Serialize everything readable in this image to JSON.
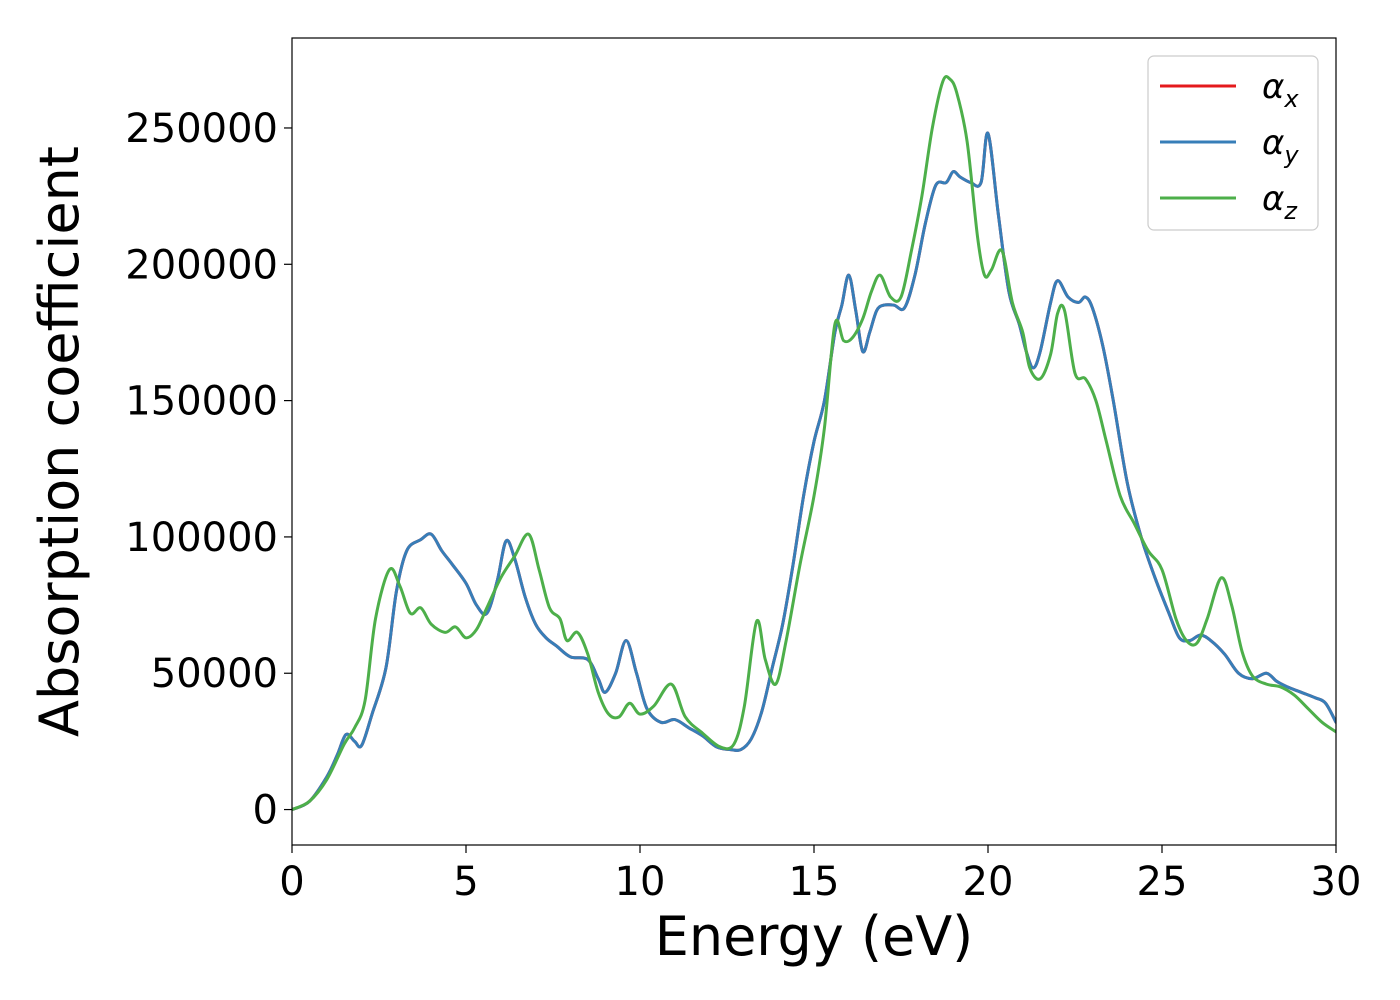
{
  "chart_data": {
    "type": "line",
    "title": "",
    "xlabel": "Energy (eV)",
    "ylabel": "Absorption coefficient",
    "xlim": [
      0,
      30
    ],
    "ylim": [
      -13000,
      283000
    ],
    "xticks": [
      0,
      5,
      10,
      15,
      20,
      25,
      30
    ],
    "yticks": [
      0,
      50000,
      100000,
      150000,
      200000,
      250000
    ],
    "grid": false,
    "legend": {
      "position": "top-right"
    },
    "series": [
      {
        "name": "α",
        "subscript": "x",
        "color": "#e41a1c",
        "x": [
          0,
          0.5,
          1,
          1.3,
          1.55,
          1.8,
          2.0,
          2.3,
          2.7,
          3.0,
          3.3,
          3.7,
          4.0,
          4.3,
          4.6,
          5.0,
          5.3,
          5.6,
          5.9,
          6.15,
          6.4,
          6.7,
          7.0,
          7.3,
          7.6,
          8.0,
          8.5,
          8.8,
          9.0,
          9.3,
          9.6,
          9.9,
          10.2,
          10.6,
          11.0,
          11.4,
          11.8,
          12.2,
          12.6,
          12.9,
          13.2,
          13.5,
          13.8,
          14.1,
          14.4,
          14.7,
          15.0,
          15.3,
          15.6,
          15.8,
          16.0,
          16.2,
          16.4,
          16.6,
          16.8,
          17.0,
          17.3,
          17.6,
          17.9,
          18.2,
          18.5,
          18.8,
          19.0,
          19.2,
          19.5,
          19.8,
          20.0,
          20.3,
          20.6,
          20.9,
          21.1,
          21.3,
          21.5,
          21.8,
          22.0,
          22.3,
          22.6,
          22.8,
          23.0,
          23.3,
          23.6,
          24.0,
          24.4,
          24.8,
          25.2,
          25.5,
          25.8,
          26.1,
          26.4,
          26.8,
          27.2,
          27.6,
          28.0,
          28.3,
          28.6,
          29.0,
          29.4,
          29.7,
          30.0
        ],
        "values": [
          0,
          3000,
          12000,
          20000,
          27500,
          25000,
          23500,
          35000,
          52000,
          80000,
          95000,
          99000,
          101000,
          95000,
          90000,
          83000,
          75000,
          72000,
          84000,
          98500,
          92000,
          78000,
          68000,
          63000,
          60000,
          56000,
          55000,
          48000,
          43000,
          50000,
          62000,
          50000,
          37000,
          32000,
          33000,
          30000,
          27000,
          23000,
          22000,
          22000,
          26000,
          36000,
          52000,
          68000,
          90000,
          115000,
          135000,
          150000,
          175000,
          185000,
          196000,
          183000,
          168000,
          175000,
          183000,
          185000,
          185000,
          184000,
          196000,
          215000,
          229000,
          230000,
          234000,
          232000,
          230000,
          230000,
          248000,
          218000,
          190000,
          178000,
          168000,
          162000,
          168000,
          186000,
          194000,
          188000,
          186000,
          188000,
          184000,
          170000,
          150000,
          120000,
          100000,
          85000,
          72000,
          63000,
          62000,
          64000,
          62000,
          57000,
          50000,
          48000,
          50000,
          47000,
          45000,
          43000,
          41000,
          39000,
          32000
        ]
      },
      {
        "name": "α",
        "subscript": "y",
        "color": "#377eb8",
        "x": [
          0,
          0.5,
          1,
          1.3,
          1.55,
          1.8,
          2.0,
          2.3,
          2.7,
          3.0,
          3.3,
          3.7,
          4.0,
          4.3,
          4.6,
          5.0,
          5.3,
          5.6,
          5.9,
          6.15,
          6.4,
          6.7,
          7.0,
          7.3,
          7.6,
          8.0,
          8.5,
          8.8,
          9.0,
          9.3,
          9.6,
          9.9,
          10.2,
          10.6,
          11.0,
          11.4,
          11.8,
          12.2,
          12.6,
          12.9,
          13.2,
          13.5,
          13.8,
          14.1,
          14.4,
          14.7,
          15.0,
          15.3,
          15.6,
          15.8,
          16.0,
          16.2,
          16.4,
          16.6,
          16.8,
          17.0,
          17.3,
          17.6,
          17.9,
          18.2,
          18.5,
          18.8,
          19.0,
          19.2,
          19.5,
          19.8,
          20.0,
          20.3,
          20.6,
          20.9,
          21.1,
          21.3,
          21.5,
          21.8,
          22.0,
          22.3,
          22.6,
          22.8,
          23.0,
          23.3,
          23.6,
          24.0,
          24.4,
          24.8,
          25.2,
          25.5,
          25.8,
          26.1,
          26.4,
          26.8,
          27.2,
          27.6,
          28.0,
          28.3,
          28.6,
          29.0,
          29.4,
          29.7,
          30.0
        ],
        "values": [
          0,
          3000,
          12000,
          20000,
          27500,
          25000,
          23500,
          35000,
          52000,
          80000,
          95000,
          99000,
          101000,
          95000,
          90000,
          83000,
          75000,
          72000,
          84000,
          98500,
          92000,
          78000,
          68000,
          63000,
          60000,
          56000,
          55000,
          48000,
          43000,
          50000,
          62000,
          50000,
          37000,
          32000,
          33000,
          30000,
          27000,
          23000,
          22000,
          22000,
          26000,
          36000,
          52000,
          68000,
          90000,
          115000,
          135000,
          150000,
          175000,
          185000,
          196000,
          183000,
          168000,
          175000,
          183000,
          185000,
          185000,
          184000,
          196000,
          215000,
          229000,
          230000,
          234000,
          232000,
          230000,
          230000,
          248000,
          218000,
          190000,
          178000,
          168000,
          162000,
          168000,
          186000,
          194000,
          188000,
          186000,
          188000,
          184000,
          170000,
          150000,
          120000,
          100000,
          85000,
          72000,
          63000,
          62000,
          64000,
          62000,
          57000,
          50000,
          48000,
          50000,
          47000,
          45000,
          43000,
          41000,
          39000,
          32000
        ]
      },
      {
        "name": "α",
        "subscript": "z",
        "color": "#4daf4a",
        "x": [
          0,
          0.5,
          1,
          1.5,
          1.8,
          2.1,
          2.4,
          2.8,
          3.1,
          3.4,
          3.7,
          4.0,
          4.4,
          4.7,
          5.0,
          5.3,
          5.6,
          6.0,
          6.4,
          6.8,
          7.1,
          7.4,
          7.7,
          7.9,
          8.2,
          8.5,
          8.8,
          9.1,
          9.4,
          9.7,
          10.0,
          10.4,
          10.9,
          11.3,
          11.8,
          12.3,
          12.7,
          13.0,
          13.35,
          13.6,
          13.9,
          14.2,
          14.6,
          15.0,
          15.3,
          15.6,
          15.85,
          16.1,
          16.4,
          16.65,
          16.9,
          17.2,
          17.5,
          17.8,
          18.1,
          18.4,
          18.7,
          18.9,
          19.1,
          19.4,
          19.7,
          19.9,
          20.1,
          20.4,
          20.7,
          21.0,
          21.2,
          21.5,
          21.8,
          22.0,
          22.2,
          22.5,
          22.8,
          23.1,
          23.4,
          23.8,
          24.2,
          24.6,
          25.0,
          25.4,
          25.7,
          26.0,
          26.3,
          26.7,
          27.0,
          27.3,
          27.6,
          28.0,
          28.4,
          28.8,
          29.2,
          29.6,
          30.0
        ],
        "values": [
          0,
          3000,
          11000,
          24000,
          30000,
          40000,
          70000,
          88000,
          82000,
          72000,
          74000,
          68000,
          65000,
          67000,
          63000,
          66000,
          74000,
          85000,
          93000,
          101000,
          88000,
          74000,
          70000,
          62000,
          65000,
          57000,
          43000,
          35000,
          34000,
          39000,
          35000,
          38000,
          46000,
          34000,
          28000,
          23000,
          24000,
          38000,
          69000,
          55000,
          46000,
          62000,
          90000,
          115000,
          140000,
          178000,
          172000,
          173000,
          180000,
          190000,
          196000,
          188000,
          188000,
          205000,
          225000,
          250000,
          267000,
          268000,
          263000,
          245000,
          210000,
          196000,
          198000,
          205000,
          186000,
          175000,
          162000,
          158000,
          167000,
          182000,
          183000,
          160000,
          158000,
          150000,
          135000,
          115000,
          105000,
          95000,
          88000,
          70000,
          62000,
          61000,
          70000,
          85000,
          75000,
          58000,
          49000,
          46000,
          45000,
          42000,
          37000,
          32000,
          28500
        ]
      }
    ]
  }
}
